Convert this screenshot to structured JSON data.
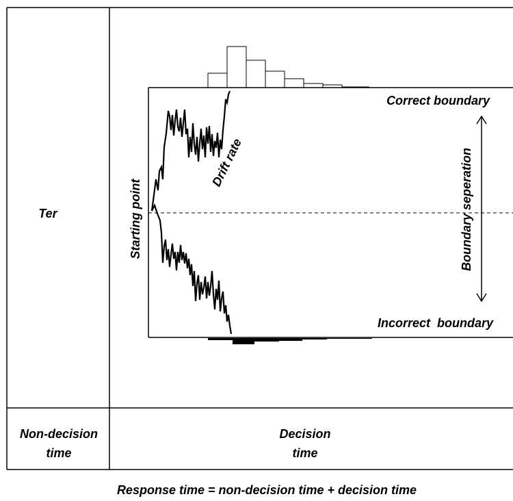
{
  "labels": {
    "ter": "Ter",
    "correct_boundary": "Correct boundary",
    "incorrect_boundary": "Incorrect  boundary",
    "drift_rate": "Drift rate",
    "starting_point": "Starting point",
    "boundary_separation": "Boundary seperation",
    "non_decision_line1": "Non-decision",
    "non_decision_line2": "time",
    "decision_line1": "Decision",
    "decision_line2": "time",
    "caption": "Response time = non-decision time + decision time"
  }
}
